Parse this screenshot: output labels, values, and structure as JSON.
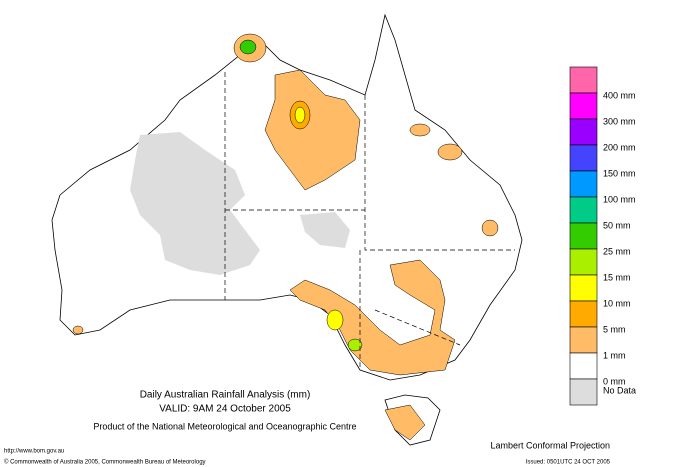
{
  "title": "Daily Australian Rainfall Analysis (mm)",
  "valid": "VALID: 9AM 24 October 2005",
  "product": "Product of the National Meteorological and Oceanographic Centre",
  "url": "http://www.bom.gov.au",
  "copyright": "© Commonwealth of Australia 2005, Commonwealth Bureau of Meteorology",
  "projection": "Lambert Conformal Projection",
  "issued": "Issued: 0501UTC 24 OCT 2005",
  "legend": {
    "colors": [
      "#ff66aa",
      "#ff00ff",
      "#9900ff",
      "#4444ff",
      "#0099ff",
      "#00cc88",
      "#33cc00",
      "#aaee00",
      "#ffff00",
      "#ffaa00",
      "#ffbb66",
      "#ffffff",
      "#dddddd"
    ],
    "labels": [
      "400 mm",
      "300 mm",
      "200 mm",
      "150 mm",
      "100 mm",
      "50 mm",
      "25 mm",
      "15 mm",
      "10 mm",
      "5 mm",
      "1 mm",
      "0 mm",
      "No Data"
    ]
  }
}
